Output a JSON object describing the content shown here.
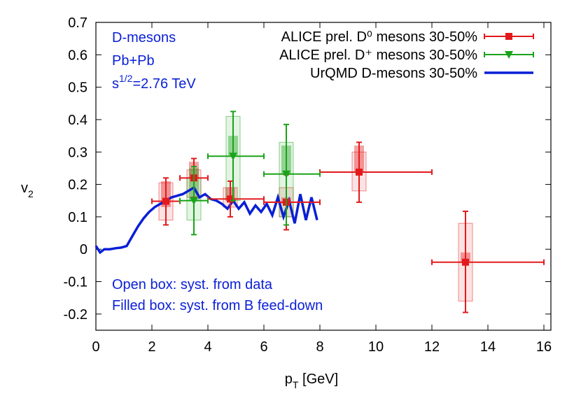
{
  "chart_data": {
    "type": "errorbar",
    "xlabel": {
      "base": "p",
      "sub": "T",
      "rest": " [GeV]"
    },
    "ylabel": {
      "base": "v",
      "sub": "2"
    },
    "xlim": [
      0,
      16.25
    ],
    "ylim": [
      -0.25,
      0.7
    ],
    "xticks": [
      0,
      2,
      4,
      6,
      8,
      10,
      12,
      14,
      16
    ],
    "yticks": [
      -0.2,
      -0.1,
      0,
      0.1,
      0.2,
      0.3,
      0.4,
      0.5,
      0.6,
      0.7
    ],
    "annotations": [
      "D-mesons",
      "Pb+Pb"
    ],
    "energy": {
      "base": "s",
      "sup": "1/2",
      "rest": "=2.76 TeV"
    },
    "notes": [
      "Open box: syst. from data",
      "Filled box: syst. from B feed-down"
    ],
    "series": [
      {
        "name": "ALICE prel. D⁰ mesons 30-50%",
        "color": "#e31a1c",
        "marker": "square",
        "x": [
          2.5,
          3.5,
          4.8,
          6.8,
          9.4,
          13.2
        ],
        "y": [
          0.148,
          0.22,
          0.155,
          0.145,
          0.238,
          -0.04
        ],
        "xlow": [
          2,
          3,
          4,
          6,
          8,
          12
        ],
        "xhigh": [
          3,
          4,
          6,
          8,
          12,
          16
        ],
        "ylow": [
          0.075,
          0.16,
          0.1,
          0.06,
          0.145,
          -0.195
        ],
        "yhigh": [
          0.22,
          0.28,
          0.21,
          0.23,
          0.33,
          0.117
        ],
        "box_low": [
          0.09,
          0.16,
          0.13,
          0.1,
          0.18,
          -0.16
        ],
        "box_high": [
          0.205,
          0.245,
          0.19,
          0.19,
          0.3,
          0.08
        ],
        "fill_low": [
          0.13,
          0.22,
          0.15,
          0.14,
          0.24,
          -0.04
        ],
        "fill_high": [
          0.21,
          0.27,
          0.19,
          0.16,
          0.32,
          -0.01
        ]
      },
      {
        "name": "ALICE prel. D⁺ mesons 30-50%",
        "color": "#1aa31a",
        "marker": "triangle",
        "x": [
          3.5,
          4.9,
          6.8
        ],
        "y": [
          0.15,
          0.287,
          0.232
        ],
        "xlow": [
          3,
          4,
          6
        ],
        "xhigh": [
          4,
          6,
          8
        ],
        "ylow": [
          0.045,
          0.15,
          0.075
        ],
        "yhigh": [
          0.255,
          0.425,
          0.385
        ],
        "box_low": [
          0.09,
          0.15,
          0.1
        ],
        "box_high": [
          0.22,
          0.41,
          0.33
        ],
        "fill_low": [
          0.15,
          0.29,
          0.23
        ],
        "fill_high": [
          0.25,
          0.35,
          0.32
        ]
      }
    ],
    "line": {
      "name": "UrQMD D-mesons 30-50%",
      "color": "#0a1fd6",
      "x": [
        0,
        0.15,
        0.3,
        0.5,
        0.7,
        0.9,
        1.1,
        1.3,
        1.5,
        1.7,
        1.9,
        2.1,
        2.3,
        2.5,
        2.7,
        2.9,
        3.1,
        3.3,
        3.5,
        3.7,
        3.9,
        4.1,
        4.3,
        4.5,
        4.7,
        4.9,
        5.1,
        5.3,
        5.5,
        5.7,
        5.9,
        6.1,
        6.3,
        6.5,
        6.7,
        6.9,
        7.1,
        7.3,
        7.5,
        7.7,
        7.9
      ],
      "y": [
        0.01,
        -0.01,
        0.0,
        0.0,
        0.003,
        0.005,
        0.01,
        0.04,
        0.07,
        0.095,
        0.115,
        0.13,
        0.14,
        0.15,
        0.16,
        0.165,
        0.17,
        0.18,
        0.19,
        0.16,
        0.17,
        0.155,
        0.15,
        0.14,
        0.125,
        0.15,
        0.125,
        0.145,
        0.11,
        0.135,
        0.115,
        0.14,
        0.105,
        0.16,
        0.1,
        0.15,
        0.08,
        0.17,
        0.09,
        0.16,
        0.09
      ]
    }
  }
}
